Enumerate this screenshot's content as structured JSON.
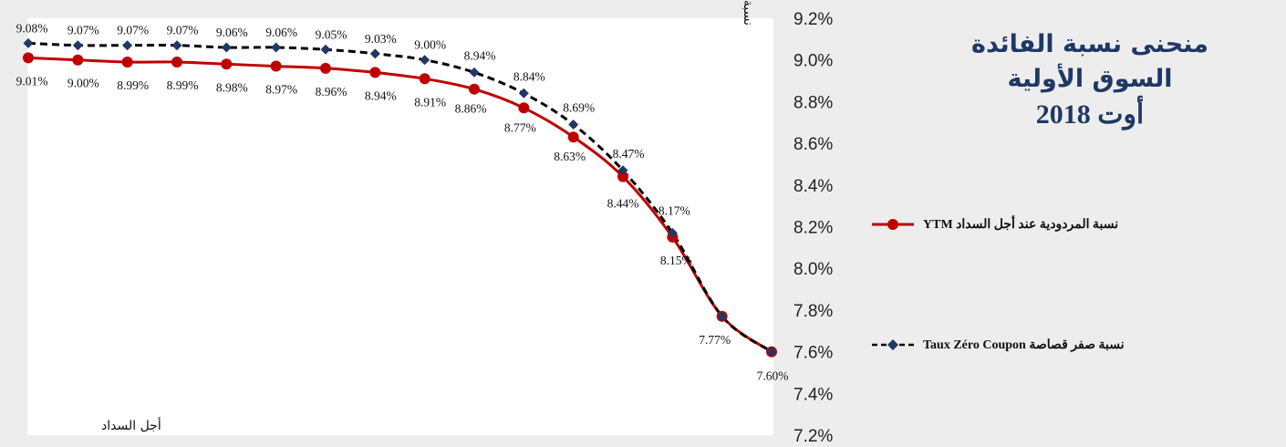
{
  "title": {
    "line1": "منحنى نسبة الفائدة",
    "line2": "السوق الأولية",
    "line3": "أوت 2018"
  },
  "colors": {
    "ytm": "#c00000",
    "zero_coupon_line": "#000000",
    "zero_coupon_marker": "#1f3864",
    "title": "#1f3864",
    "background": "#ededed",
    "plot_background": "#ffffff"
  },
  "chart_data": {
    "type": "line",
    "title": "منحنى نسبة الفائدة السوق الأولية أوت 2018",
    "xlabel": "أجل السداد",
    "ylabel": "نسبة المردودية",
    "ylim": [
      7.2,
      9.2
    ],
    "yticks": [
      "9.2%",
      "9.0%",
      "8.8%",
      "8.6%",
      "8.4%",
      "8.2%",
      "8.0%",
      "7.8%",
      "7.6%",
      "7.4%",
      "7.2%"
    ],
    "grid": false,
    "legend_position": "right",
    "y_axis_position": "right",
    "series": [
      {
        "name": "نسبة المردودية عند أجل السداد  YTM",
        "color": "#c00000",
        "line_style": "solid",
        "marker": "circle",
        "values": [
          9.01,
          9.0,
          8.99,
          8.99,
          8.98,
          8.97,
          8.96,
          8.94,
          8.91,
          8.86,
          8.77,
          8.63,
          8.44,
          8.15,
          7.77,
          7.6
        ],
        "labels": [
          "9.01%",
          "9.00%",
          "8.99%",
          "8.99%",
          "8.98%",
          "8.97%",
          "8.96%",
          "8.94%",
          "8.91%",
          "8.86%",
          "8.77%",
          "8.63%",
          "8.44%",
          "8.15%",
          "7.77%",
          "7.60%"
        ]
      },
      {
        "name": "نسبة صفر قصاصة  Taux Zéro Coupon",
        "color": "#000000",
        "marker_color": "#1f3864",
        "line_style": "dashed",
        "marker": "diamond",
        "values": [
          9.08,
          9.07,
          9.07,
          9.07,
          9.06,
          9.06,
          9.05,
          9.03,
          9.0,
          8.94,
          8.84,
          8.69,
          8.47,
          8.17,
          7.77,
          7.6
        ],
        "labels": [
          "9.08%",
          "9.07%",
          "9.07%",
          "9.07%",
          "9.06%",
          "9.06%",
          "9.05%",
          "9.03%",
          "9.00%",
          "8.94%",
          "8.84%",
          "8.69%",
          "8.47%",
          "8.17%",
          "",
          ""
        ]
      }
    ]
  }
}
